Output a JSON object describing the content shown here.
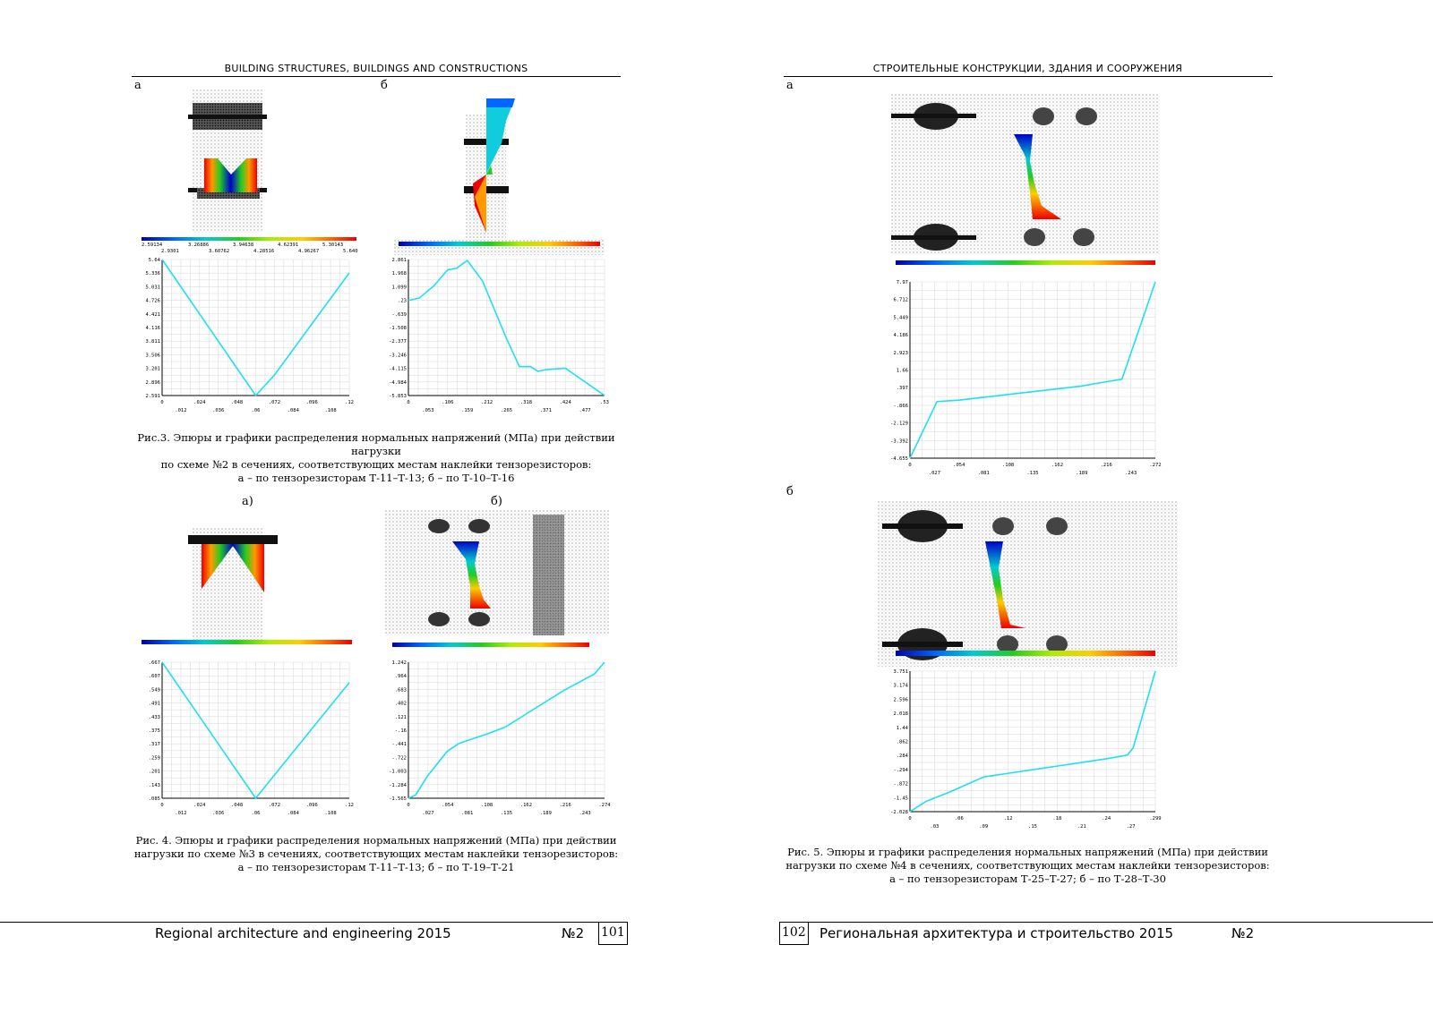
{
  "left": {
    "header": "BUILDING STRUCTURES, BUILDINGS AND CONSTRUCTIONS",
    "fig3": {
      "label_a": "а",
      "label_b": "б",
      "scale_a": [
        "2.59134",
        "3.26886",
        "3.94638",
        "4.62391",
        "5.30143",
        "2.9301",
        "3.60762",
        "4.28516",
        "4.96267",
        "5.640"
      ],
      "caption": [
        "Рис.3. Эпюры и графики распределения нормальных напряжений (МПа) при действии нагрузки",
        "по схеме №2 в сечениях, соответствующих местам наклейки тензорезисторов:",
        "а – по тензорезисторам Т-11–Т-13; б – по Т-10–Т-16"
      ]
    },
    "fig4": {
      "label_a": "а)",
      "label_b": "б)",
      "caption": [
        "Рис. 4. Эпюры и графики распределения нормальных напряжений (МПа) при действии",
        "нагрузки по схеме №3 в сечениях, соответствующих местам наклейки тензорезисторов:",
        "а – по тензорезисторам Т-11–Т-13; б – по Т-19–Т-21"
      ]
    },
    "footer": {
      "title": "Regional architecture and engineering 2015",
      "issue": "№2",
      "page": "101"
    }
  },
  "right": {
    "header": "СТРОИТЕЛЬНЫЕ КОНСТРУКЦИИ, ЗДАНИЯ И СООРУЖЕНИЯ",
    "fig5": {
      "label_a": "а",
      "label_b": "б",
      "caption": [
        "Рис. 5. Эпюры и графики распределения нормальных напряжений (МПа) при действии",
        "нагрузки по схеме №4 в сечениях, соответствующих местам наклейки тензорезисторов:",
        "а – по тензорезисторам Т-25–Т-27; б – по Т-28–Т-30"
      ]
    },
    "footer": {
      "title": "Региональная архитектура и строительство 2015",
      "issue": "№2",
      "page": "102"
    }
  },
  "chart_data": [
    {
      "id": "fig3a",
      "type": "line",
      "x": [
        0,
        0.06,
        0.072,
        0.12
      ],
      "y": [
        5.64,
        2.591,
        3.05,
        5.34
      ],
      "xticks_top": [
        "0",
        ".024",
        ".048",
        ".072",
        ".096",
        ".12"
      ],
      "xticks_bot": [
        ".012",
        ".036",
        ".06",
        ".084",
        ".108"
      ],
      "yticks": [
        "5.64",
        "5.336",
        "5.031",
        "4.726",
        "4.421",
        "4.116",
        "3.811",
        "3.506",
        "3.201",
        "2.896",
        "2.591"
      ],
      "xlim": [
        0,
        0.12
      ],
      "ylim": [
        2.591,
        5.64
      ]
    },
    {
      "id": "fig3b",
      "type": "line",
      "x": [
        0,
        0.03,
        0.07,
        0.106,
        0.13,
        0.159,
        0.2,
        0.265,
        0.3,
        0.33,
        0.35,
        0.371,
        0.424,
        0.53
      ],
      "y": [
        0.23,
        0.4,
        1.2,
        2.2,
        2.3,
        2.8,
        1.5,
        -2.2,
        -4.0,
        -4.0,
        -4.3,
        -4.2,
        -4.1,
        -5.85
      ],
      "xticks_top": [
        "0",
        ".106",
        ".212",
        ".318",
        ".424",
        ".53"
      ],
      "xticks_bot": [
        ".053",
        ".159",
        ".265",
        ".371",
        ".477"
      ],
      "yticks": [
        "2.861",
        "1.968",
        "1.099",
        ".23",
        "-.639",
        "-1.508",
        "-2.377",
        "-3.246",
        "-4.115",
        "-4.984",
        "-5.853"
      ],
      "xlim": [
        0,
        0.53
      ],
      "ylim": [
        -5.853,
        2.861
      ]
    },
    {
      "id": "fig4a",
      "type": "line",
      "x": [
        0,
        0.06,
        0.12
      ],
      "y": [
        0.667,
        0.085,
        0.58
      ],
      "xticks_top": [
        "0",
        ".024",
        ".048",
        ".072",
        ".096",
        ".12"
      ],
      "xticks_bot": [
        ".012",
        ".036",
        ".06",
        ".084",
        ".108"
      ],
      "yticks": [
        ".667",
        ".607",
        ".549",
        ".491",
        ".433",
        ".375",
        ".317",
        ".259",
        ".201",
        ".143",
        ".085"
      ],
      "xlim": [
        0,
        0.12
      ],
      "ylim": [
        0.085,
        0.667
      ]
    },
    {
      "id": "fig4b",
      "type": "line",
      "x": [
        0,
        0.01,
        0.027,
        0.054,
        0.07,
        0.081,
        0.108,
        0.135,
        0.162,
        0.216,
        0.26,
        0.274
      ],
      "y": [
        -1.565,
        -1.5,
        -1.1,
        -0.6,
        -0.44,
        -0.38,
        -0.25,
        -0.1,
        0.15,
        0.65,
        1.0,
        1.242
      ],
      "xticks_top": [
        "0",
        ".054",
        ".108",
        ".162",
        ".216",
        ".274"
      ],
      "xticks_bot": [
        ".027",
        ".081",
        ".135",
        ".189",
        ".243"
      ],
      "yticks": [
        "1.242",
        ".964",
        ".683",
        ".402",
        ".121",
        "-.16",
        "-.441",
        "-.722",
        "-1.003",
        "-1.284",
        "-1.565"
      ],
      "xlim": [
        0,
        0.274
      ],
      "ylim": [
        -1.565,
        1.242
      ]
    },
    {
      "id": "fig5a",
      "type": "line",
      "x": [
        0,
        0.03,
        0.054,
        0.081,
        0.108,
        0.135,
        0.162,
        0.189,
        0.216,
        0.235,
        0.272
      ],
      "y": [
        -4.655,
        -0.6,
        -0.5,
        -0.3,
        -0.1,
        0.1,
        0.3,
        0.5,
        0.8,
        1.0,
        7.97
      ],
      "xticks_top": [
        "0",
        ".054",
        ".108",
        ".162",
        ".216",
        ".272"
      ],
      "xticks_bot": [
        ".027",
        ".081",
        ".135",
        ".189",
        ".243"
      ],
      "yticks": [
        "7.97",
        "6.712",
        "5.449",
        "4.186",
        "2.923",
        "1.66",
        ".397",
        "-.866",
        "-2.129",
        "-3.392",
        "-4.655"
      ],
      "xlim": [
        0,
        0.272
      ],
      "ylim": [
        -4.655,
        7.97
      ]
    },
    {
      "id": "fig5b",
      "type": "line",
      "x": [
        0,
        0.02,
        0.05,
        0.09,
        0.12,
        0.15,
        0.18,
        0.21,
        0.24,
        0.265,
        0.272,
        0.299
      ],
      "y": [
        -2.028,
        -1.6,
        -1.2,
        -0.6,
        -0.45,
        -0.3,
        -0.15,
        0,
        0.15,
        0.3,
        0.6,
        3.751
      ],
      "xticks_top": [
        "0",
        ".06",
        ".12",
        ".18",
        ".24",
        ".299"
      ],
      "xticks_bot": [
        ".03",
        ".09",
        ".15",
        ".21",
        ".27"
      ],
      "yticks": [
        "3.751",
        "3.174",
        "2.596",
        "2.018",
        "1.44",
        ".862",
        ".284",
        "-.294",
        "-.872",
        "-1.45",
        "-2.028"
      ],
      "xlim": [
        0,
        0.299
      ],
      "ylim": [
        -2.028,
        3.751
      ]
    }
  ]
}
